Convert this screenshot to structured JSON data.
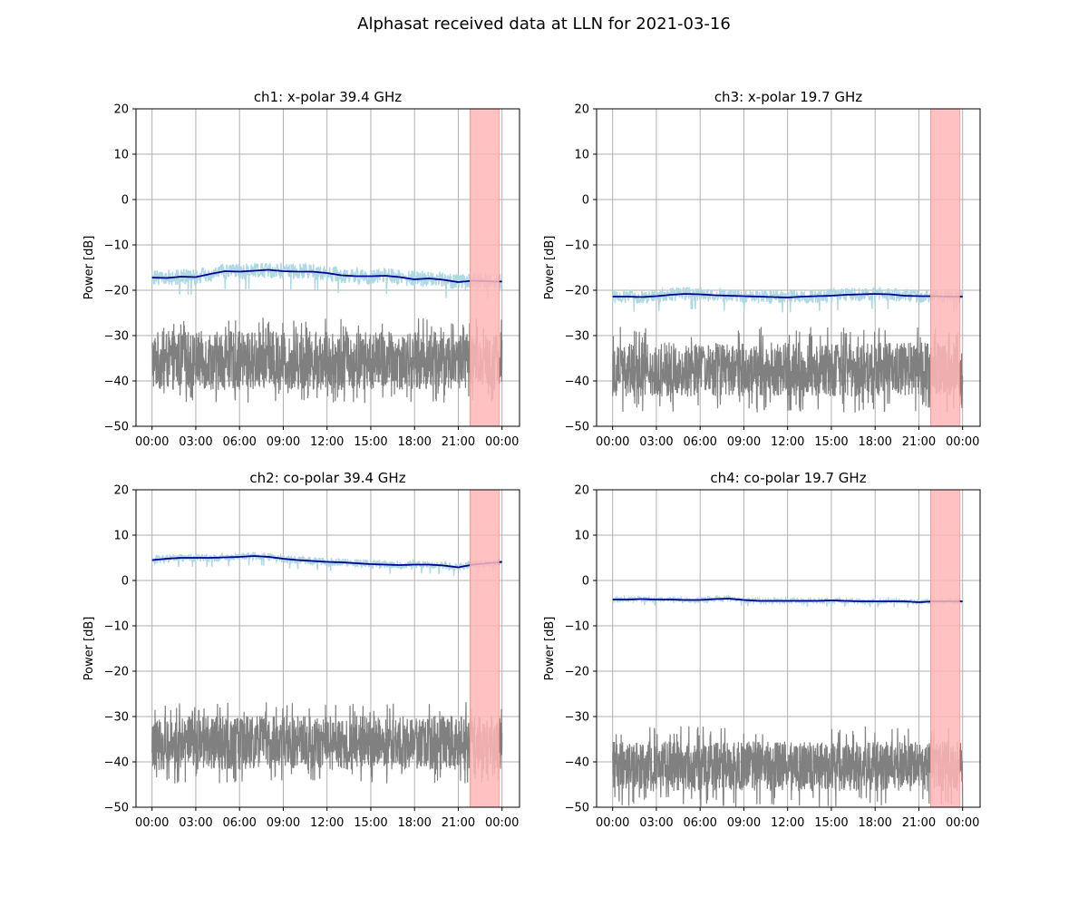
{
  "figure": {
    "title": "Alphasat received data at LLN for 2021-03-16"
  },
  "colors": {
    "signal_band": "#add8e6",
    "trend": "#00008b",
    "noise": "#808080",
    "highlight": "#ffb6b6",
    "grid": "#b0b0b0"
  },
  "chart_data": [
    {
      "type": "line",
      "title": "ch1: x-polar 39.4 GHz",
      "xlabel": "",
      "ylabel": "Power [dB]",
      "ylim": [
        -50,
        20
      ],
      "yticks": [
        20,
        10,
        0,
        -10,
        -20,
        -30,
        -40,
        -50
      ],
      "xticks": [
        "00:00",
        "03:00",
        "06:00",
        "09:00",
        "12:00",
        "15:00",
        "18:00",
        "21:00",
        "00:00"
      ],
      "xlim_hours": [
        -1.1,
        25.2
      ],
      "grid": true,
      "highlight_hours": [
        21.8,
        23.8
      ],
      "series": [
        {
          "kind": "band",
          "x": [
            0,
            1,
            2,
            3,
            4,
            5,
            6,
            7,
            8,
            9,
            10,
            11,
            12,
            13,
            14,
            15,
            16,
            17,
            18,
            19,
            20,
            21,
            22,
            23,
            24
          ],
          "center": [
            -17.2,
            -17.3,
            -17.0,
            -17.1,
            -16.4,
            -15.8,
            -15.9,
            -15.7,
            -15.5,
            -15.8,
            -15.9,
            -15.9,
            -16.2,
            -16.7,
            -16.9,
            -16.9,
            -16.8,
            -17.1,
            -17.6,
            -17.4,
            -17.7,
            -18.2,
            -17.9,
            -18.0,
            -18.1
          ],
          "halfwidth": 1.8
        },
        {
          "kind": "line",
          "x": [
            0,
            1,
            2,
            3,
            4,
            5,
            6,
            7,
            8,
            9,
            10,
            11,
            12,
            13,
            14,
            15,
            16,
            17,
            18,
            19,
            20,
            21,
            22,
            23,
            24
          ],
          "values": [
            -17.2,
            -17.3,
            -17.0,
            -17.1,
            -16.4,
            -15.8,
            -15.9,
            -15.7,
            -15.5,
            -15.8,
            -15.9,
            -15.9,
            -16.2,
            -16.7,
            -16.9,
            -16.9,
            -16.8,
            -17.1,
            -17.6,
            -17.4,
            -17.7,
            -18.2,
            -17.9,
            -18.0,
            -18.1
          ]
        },
        {
          "kind": "noise",
          "x_range": [
            0,
            24
          ],
          "center": -35.5,
          "halfwidth": 6.5,
          "spikes": 9.5
        }
      ]
    },
    {
      "type": "line",
      "title": "ch3: x-polar 19.7 GHz",
      "xlabel": "",
      "ylabel": "Power [dB]",
      "ylim": [
        -50,
        20
      ],
      "yticks": [
        20,
        10,
        0,
        -10,
        -20,
        -30,
        -40,
        -50
      ],
      "xticks": [
        "00:00",
        "03:00",
        "06:00",
        "09:00",
        "12:00",
        "15:00",
        "18:00",
        "21:00",
        "00:00"
      ],
      "xlim_hours": [
        -1.1,
        25.2
      ],
      "grid": true,
      "highlight_hours": [
        21.8,
        23.8
      ],
      "series": [
        {
          "kind": "band",
          "x": [
            0,
            1,
            2,
            3,
            4,
            5,
            6,
            7,
            8,
            9,
            10,
            11,
            12,
            13,
            14,
            15,
            16,
            17,
            18,
            19,
            20,
            21,
            22,
            23,
            24
          ],
          "center": [
            -21.4,
            -21.4,
            -21.5,
            -21.3,
            -21.0,
            -20.8,
            -20.9,
            -21.1,
            -21.2,
            -21.3,
            -21.4,
            -21.5,
            -21.6,
            -21.4,
            -21.3,
            -21.2,
            -21.0,
            -20.9,
            -20.8,
            -20.9,
            -21.2,
            -21.3,
            -21.3,
            -21.4,
            -21.4
          ],
          "halfwidth": 1.5
        },
        {
          "kind": "line",
          "x": [
            0,
            1,
            2,
            3,
            4,
            5,
            6,
            7,
            8,
            9,
            10,
            11,
            12,
            13,
            14,
            15,
            16,
            17,
            18,
            19,
            20,
            21,
            22,
            23,
            24
          ],
          "values": [
            -21.4,
            -21.4,
            -21.5,
            -21.3,
            -21.0,
            -20.8,
            -20.9,
            -21.1,
            -21.2,
            -21.3,
            -21.4,
            -21.5,
            -21.6,
            -21.4,
            -21.3,
            -21.2,
            -21.0,
            -20.9,
            -20.8,
            -20.9,
            -21.2,
            -21.3,
            -21.3,
            -21.4,
            -21.4
          ]
        },
        {
          "kind": "noise",
          "x_range": [
            0,
            24
          ],
          "center": -37.5,
          "halfwidth": 6.0,
          "spikes": 9.5
        }
      ]
    },
    {
      "type": "line",
      "title": "ch2: co-polar 39.4 GHz",
      "xlabel": "",
      "ylabel": "Power [dB]",
      "ylim": [
        -50,
        20
      ],
      "yticks": [
        20,
        10,
        0,
        -10,
        -20,
        -30,
        -40,
        -50
      ],
      "xticks": [
        "00:00",
        "03:00",
        "06:00",
        "09:00",
        "12:00",
        "15:00",
        "18:00",
        "21:00",
        "00:00"
      ],
      "xlim_hours": [
        -1.1,
        25.2
      ],
      "grid": true,
      "highlight_hours": [
        21.8,
        23.8
      ],
      "series": [
        {
          "kind": "band",
          "x": [
            0,
            1,
            2,
            3,
            4,
            5,
            6,
            7,
            8,
            9,
            10,
            11,
            12,
            13,
            14,
            15,
            16,
            17,
            18,
            19,
            20,
            21,
            22,
            23,
            24
          ],
          "center": [
            4.5,
            4.8,
            5.0,
            5.0,
            5.0,
            5.1,
            5.2,
            5.4,
            5.2,
            4.8,
            4.5,
            4.3,
            4.1,
            4.0,
            3.8,
            3.6,
            3.5,
            3.4,
            3.5,
            3.5,
            3.3,
            2.9,
            3.5,
            3.8,
            4.1
          ],
          "halfwidth": 0.9
        },
        {
          "kind": "line",
          "x": [
            0,
            1,
            2,
            3,
            4,
            5,
            6,
            7,
            8,
            9,
            10,
            11,
            12,
            13,
            14,
            15,
            16,
            17,
            18,
            19,
            20,
            21,
            22,
            23,
            24
          ],
          "values": [
            4.5,
            4.8,
            5.0,
            5.0,
            5.0,
            5.1,
            5.2,
            5.4,
            5.2,
            4.8,
            4.5,
            4.3,
            4.1,
            4.0,
            3.8,
            3.6,
            3.5,
            3.4,
            3.5,
            3.5,
            3.3,
            2.9,
            3.5,
            3.8,
            4.1
          ]
        },
        {
          "kind": "noise",
          "x_range": [
            0,
            24
          ],
          "center": -35.8,
          "halfwidth": 6.0,
          "spikes": 9.0
        }
      ]
    },
    {
      "type": "line",
      "title": "ch4: co-polar 19.7 GHz",
      "xlabel": "",
      "ylabel": "Power [dB]",
      "ylim": [
        -50,
        20
      ],
      "yticks": [
        20,
        10,
        0,
        -10,
        -20,
        -30,
        -40,
        -50
      ],
      "xticks": [
        "00:00",
        "03:00",
        "06:00",
        "09:00",
        "12:00",
        "15:00",
        "18:00",
        "21:00",
        "00:00"
      ],
      "xlim_hours": [
        -1.1,
        25.2
      ],
      "grid": true,
      "highlight_hours": [
        21.8,
        23.8
      ],
      "series": [
        {
          "kind": "band",
          "x": [
            0,
            1,
            2,
            3,
            4,
            5,
            6,
            7,
            8,
            9,
            10,
            11,
            12,
            13,
            14,
            15,
            16,
            17,
            18,
            19,
            20,
            21,
            22,
            23,
            24
          ],
          "center": [
            -4.2,
            -4.2,
            -4.1,
            -4.2,
            -4.2,
            -4.3,
            -4.3,
            -4.1,
            -4.0,
            -4.3,
            -4.5,
            -4.5,
            -4.5,
            -4.5,
            -4.5,
            -4.4,
            -4.5,
            -4.6,
            -4.6,
            -4.6,
            -4.6,
            -4.8,
            -4.6,
            -4.6,
            -4.6
          ],
          "halfwidth": 0.6
        },
        {
          "kind": "line",
          "x": [
            0,
            1,
            2,
            3,
            4,
            5,
            6,
            7,
            8,
            9,
            10,
            11,
            12,
            13,
            14,
            15,
            16,
            17,
            18,
            19,
            20,
            21,
            22,
            23,
            24
          ],
          "values": [
            -4.2,
            -4.2,
            -4.1,
            -4.2,
            -4.2,
            -4.3,
            -4.3,
            -4.1,
            -4.0,
            -4.3,
            -4.5,
            -4.5,
            -4.5,
            -4.5,
            -4.5,
            -4.4,
            -4.5,
            -4.6,
            -4.6,
            -4.6,
            -4.6,
            -4.8,
            -4.6,
            -4.6,
            -4.6
          ]
        },
        {
          "kind": "noise",
          "x_range": [
            0,
            24
          ],
          "center": -41.0,
          "halfwidth": 5.5,
          "spikes": 9.0
        }
      ]
    }
  ]
}
